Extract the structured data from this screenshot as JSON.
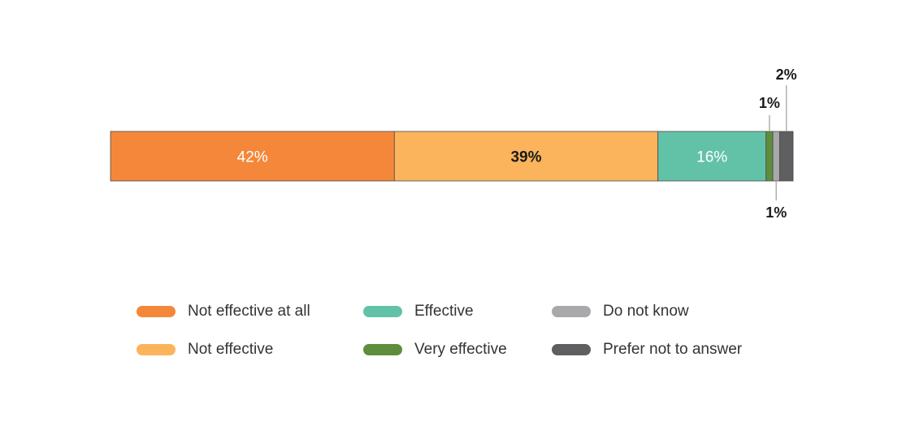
{
  "chart_data": {
    "type": "bar",
    "orientation": "horizontal-stacked",
    "series": [
      {
        "name": "Not effective at all",
        "value": 42,
        "color": "#F5873A",
        "label": "42%"
      },
      {
        "name": "Not effective",
        "value": 39,
        "color": "#FBB45C",
        "label": "39%"
      },
      {
        "name": "Effective",
        "value": 16,
        "color": "#62C2A8",
        "label": "16%"
      },
      {
        "name": "Very effective",
        "value": 1,
        "color": "#5E8E3B",
        "label": "1%"
      },
      {
        "name": "Do not know",
        "value": 1,
        "color": "#A9A9AB",
        "label": "1%"
      },
      {
        "name": "Prefer not to answer",
        "value": 2,
        "color": "#5F5F62",
        "label": "2%"
      }
    ],
    "unit": "%",
    "legend_position": "bottom",
    "grid": false
  }
}
